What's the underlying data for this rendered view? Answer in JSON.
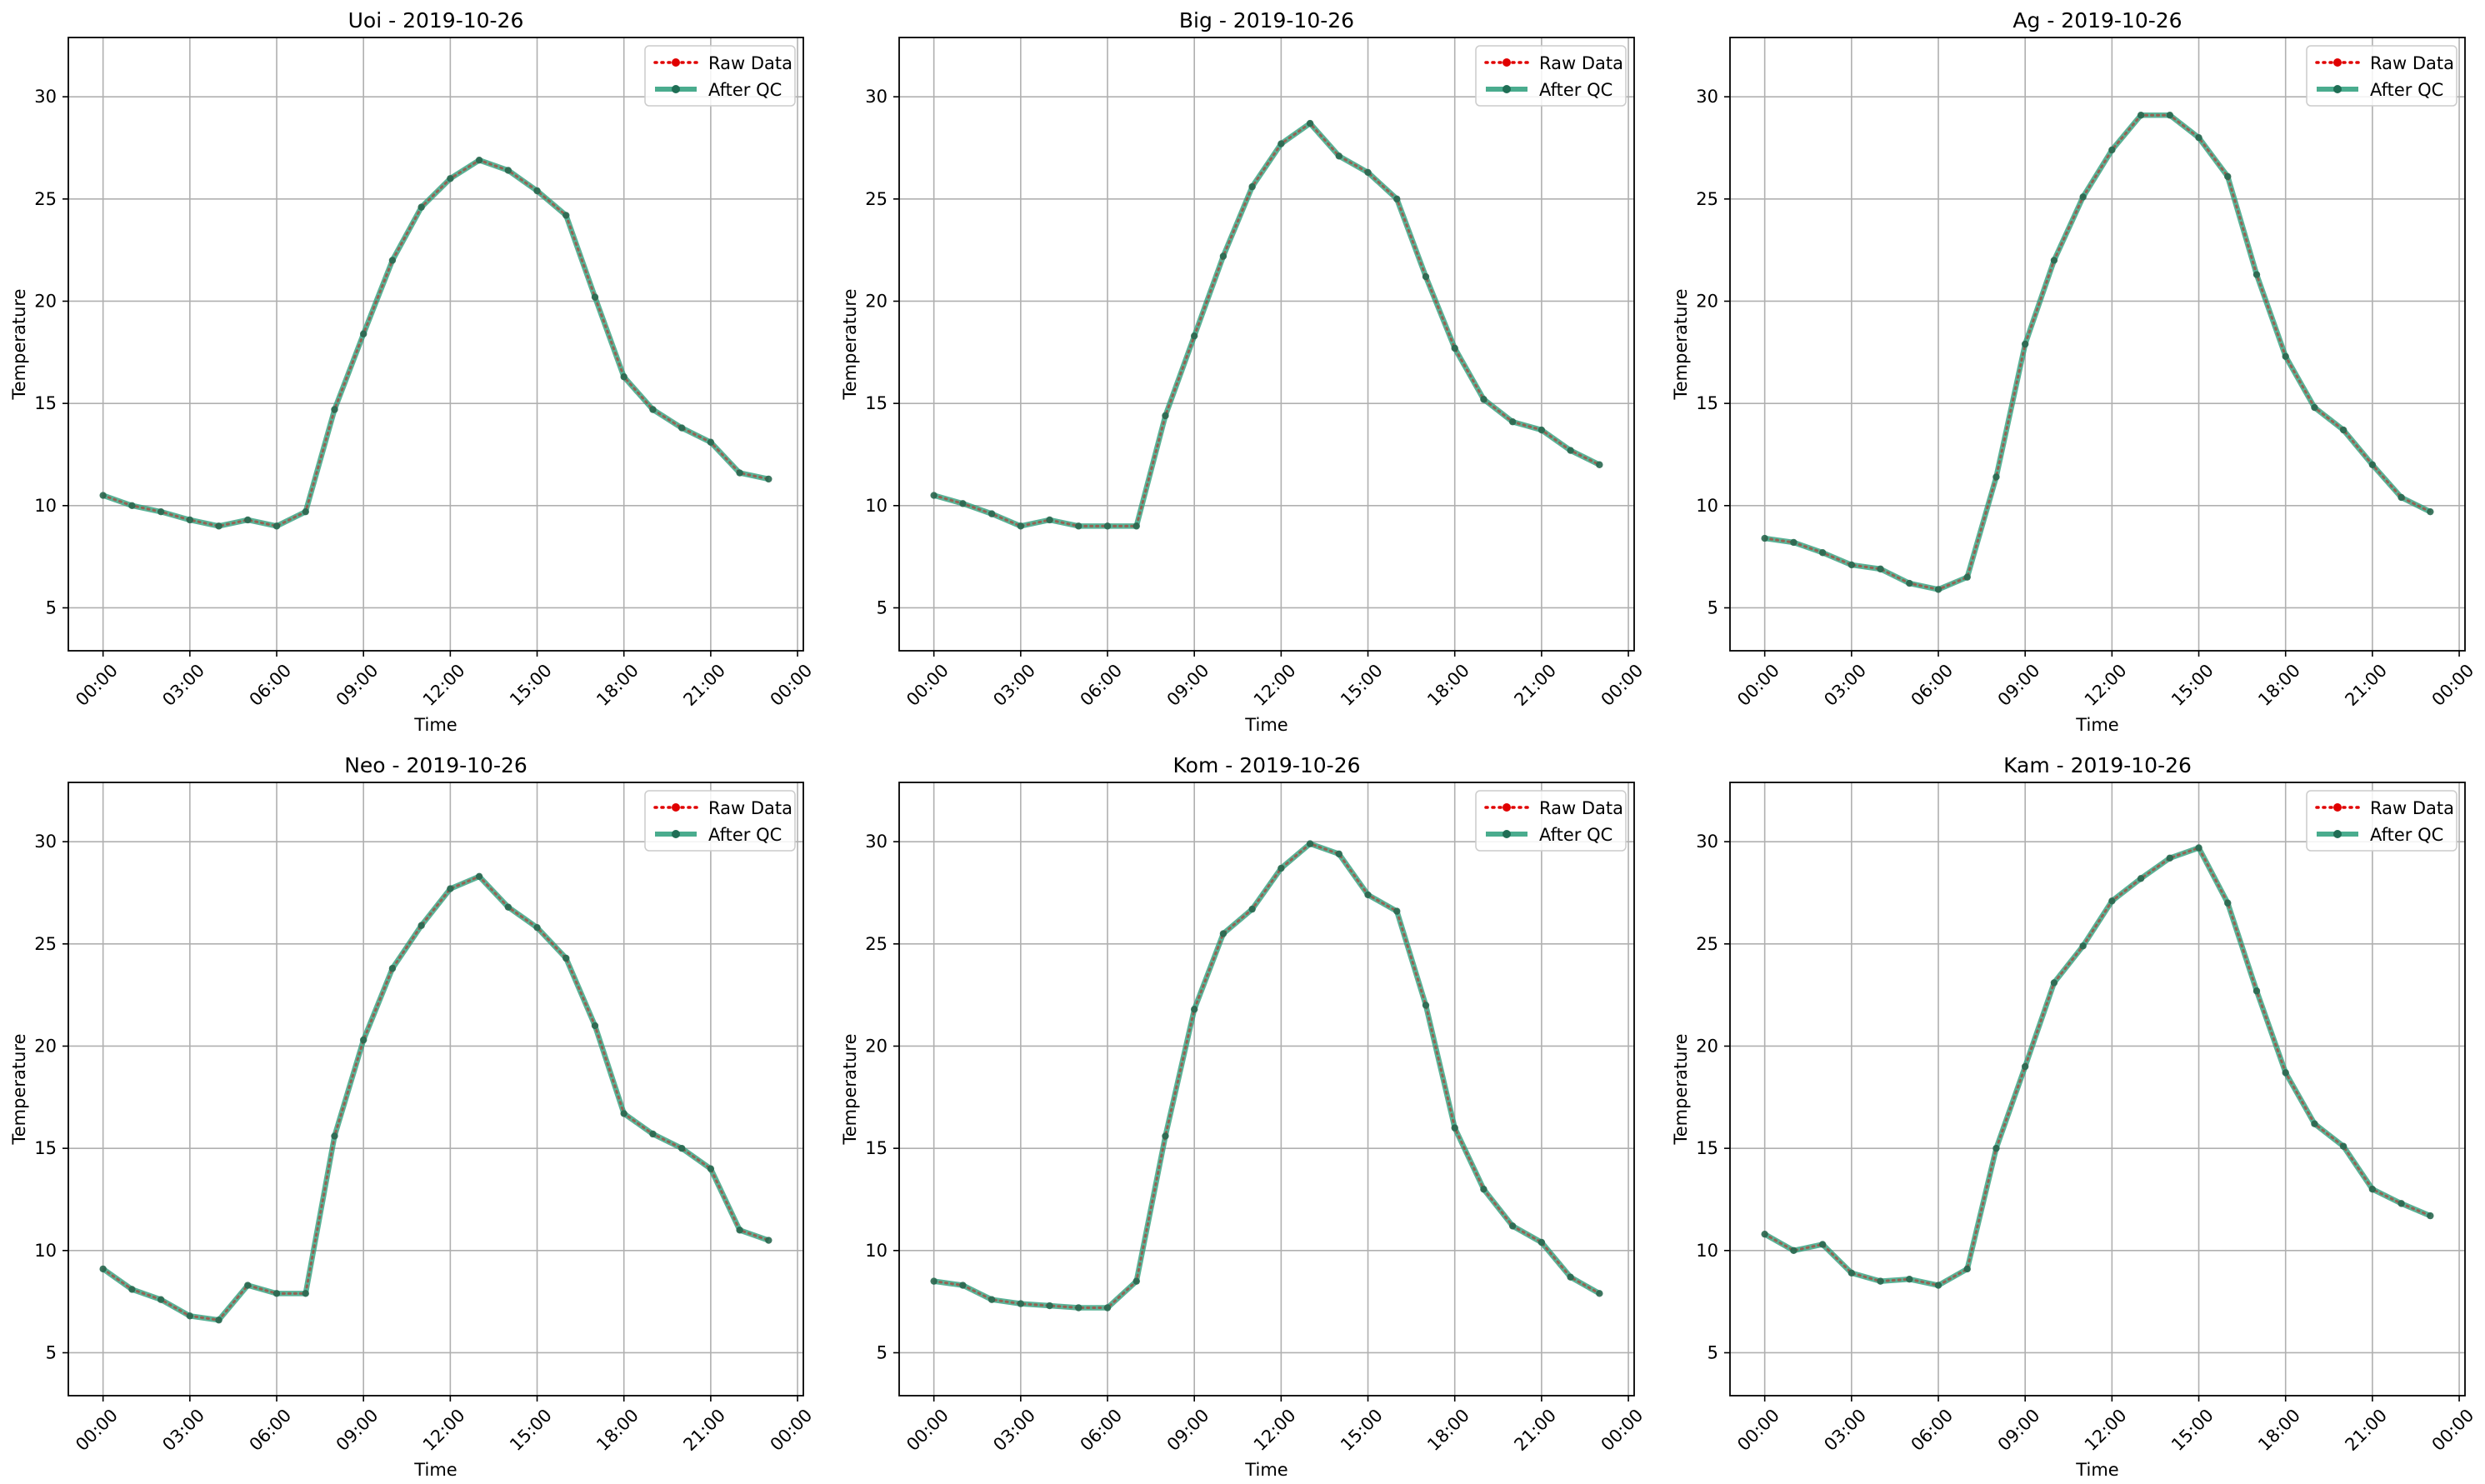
{
  "colors": {
    "raw": "#e00000",
    "qc": "#2a9d7a",
    "grid": "#b0b0b0",
    "axis": "#000000"
  },
  "x_ticks": [
    "00:00",
    "03:00",
    "06:00",
    "09:00",
    "12:00",
    "15:00",
    "18:00",
    "21:00",
    "00:00"
  ],
  "y_ticks": [
    "5",
    "10",
    "15",
    "20",
    "25",
    "30"
  ],
  "chart_data": [
    {
      "type": "line",
      "title": "Uoi - 2019-10-26",
      "xlabel": "Time",
      "ylabel": "Temperature",
      "xlim": [
        -1.2,
        24.2
      ],
      "ylim": [
        2.9,
        32.9
      ],
      "grid": true,
      "legend": "top-right",
      "x": [
        0,
        1,
        2,
        3,
        4,
        5,
        6,
        7,
        8,
        9,
        10,
        11,
        12,
        13,
        14,
        15,
        16,
        17,
        18,
        19,
        20,
        21,
        22,
        23
      ],
      "series": [
        {
          "name": "Raw Data",
          "style": "dotted",
          "values": [
            10.5,
            10.0,
            9.7,
            9.3,
            9.0,
            9.3,
            9.0,
            9.7,
            14.7,
            18.4,
            22.0,
            24.6,
            26.0,
            26.9,
            26.4,
            25.4,
            24.2,
            20.2,
            16.3,
            14.7,
            13.8,
            13.1,
            11.6,
            11.3
          ]
        },
        {
          "name": "After QC",
          "style": "solid",
          "values": [
            10.5,
            10.0,
            9.7,
            9.3,
            9.0,
            9.3,
            9.0,
            9.7,
            14.7,
            18.4,
            22.0,
            24.6,
            26.0,
            26.9,
            26.4,
            25.4,
            24.2,
            20.2,
            16.3,
            14.7,
            13.8,
            13.1,
            11.6,
            11.3
          ]
        }
      ]
    },
    {
      "type": "line",
      "title": "Big - 2019-10-26",
      "xlabel": "Time",
      "ylabel": "Temperature",
      "xlim": [
        -1.2,
        24.2
      ],
      "ylim": [
        2.9,
        32.9
      ],
      "grid": true,
      "legend": "top-right",
      "x": [
        0,
        1,
        2,
        3,
        4,
        5,
        6,
        7,
        8,
        9,
        10,
        11,
        12,
        13,
        14,
        15,
        16,
        17,
        18,
        19,
        20,
        21,
        22,
        23
      ],
      "series": [
        {
          "name": "Raw Data",
          "style": "dotted",
          "values": [
            10.5,
            10.1,
            9.6,
            9.0,
            9.3,
            9.0,
            9.0,
            9.0,
            14.4,
            18.3,
            22.2,
            25.6,
            27.7,
            28.7,
            27.1,
            26.3,
            25.0,
            21.2,
            17.7,
            15.2,
            14.1,
            13.7,
            12.7,
            12.0
          ]
        },
        {
          "name": "After QC",
          "style": "solid",
          "values": [
            10.5,
            10.1,
            9.6,
            9.0,
            9.3,
            9.0,
            9.0,
            9.0,
            14.4,
            18.3,
            22.2,
            25.6,
            27.7,
            28.7,
            27.1,
            26.3,
            25.0,
            21.2,
            17.7,
            15.2,
            14.1,
            13.7,
            12.7,
            12.0
          ]
        }
      ]
    },
    {
      "type": "line",
      "title": "Ag - 2019-10-26",
      "xlabel": "Time",
      "ylabel": "Temperature",
      "xlim": [
        -1.2,
        24.2
      ],
      "ylim": [
        2.9,
        32.9
      ],
      "grid": true,
      "legend": "top-right",
      "x": [
        0,
        1,
        2,
        3,
        4,
        5,
        6,
        7,
        8,
        9,
        10,
        11,
        12,
        13,
        14,
        15,
        16,
        17,
        18,
        19,
        20,
        21,
        22,
        23
      ],
      "series": [
        {
          "name": "Raw Data",
          "style": "dotted",
          "values": [
            8.4,
            8.2,
            7.7,
            7.1,
            6.9,
            6.2,
            5.9,
            6.5,
            11.4,
            17.9,
            22.0,
            25.1,
            27.4,
            29.1,
            29.1,
            28.0,
            26.1,
            21.3,
            17.3,
            14.8,
            13.7,
            12.0,
            10.4,
            9.7
          ]
        },
        {
          "name": "After QC",
          "style": "solid",
          "values": [
            8.4,
            8.2,
            7.7,
            7.1,
            6.9,
            6.2,
            5.9,
            6.5,
            11.4,
            17.9,
            22.0,
            25.1,
            27.4,
            29.1,
            29.1,
            28.0,
            26.1,
            21.3,
            17.3,
            14.8,
            13.7,
            12.0,
            10.4,
            9.7
          ]
        }
      ]
    },
    {
      "type": "line",
      "title": "Neo - 2019-10-26",
      "xlabel": "Time",
      "ylabel": "Temperature",
      "xlim": [
        -1.2,
        24.2
      ],
      "ylim": [
        2.9,
        32.9
      ],
      "grid": true,
      "legend": "top-right",
      "x": [
        0,
        1,
        2,
        3,
        4,
        5,
        6,
        7,
        8,
        9,
        10,
        11,
        12,
        13,
        14,
        15,
        16,
        17,
        18,
        19,
        20,
        21,
        22,
        23
      ],
      "series": [
        {
          "name": "Raw Data",
          "style": "dotted",
          "values": [
            9.1,
            8.1,
            7.6,
            6.8,
            6.6,
            8.3,
            7.9,
            7.9,
            15.6,
            20.3,
            23.8,
            25.9,
            27.7,
            28.3,
            26.8,
            25.8,
            24.3,
            21.0,
            16.7,
            15.7,
            15.0,
            14.0,
            11.0,
            10.5
          ]
        },
        {
          "name": "After QC",
          "style": "solid",
          "values": [
            9.1,
            8.1,
            7.6,
            6.8,
            6.6,
            8.3,
            7.9,
            7.9,
            15.6,
            20.3,
            23.8,
            25.9,
            27.7,
            28.3,
            26.8,
            25.8,
            24.3,
            21.0,
            16.7,
            15.7,
            15.0,
            14.0,
            11.0,
            10.5
          ]
        }
      ]
    },
    {
      "type": "line",
      "title": "Kom - 2019-10-26",
      "xlabel": "Time",
      "ylabel": "Temperature",
      "xlim": [
        -1.2,
        24.2
      ],
      "ylim": [
        2.9,
        32.9
      ],
      "grid": true,
      "legend": "top-right",
      "x": [
        0,
        1,
        2,
        3,
        4,
        5,
        6,
        7,
        8,
        9,
        10,
        11,
        12,
        13,
        14,
        15,
        16,
        17,
        18,
        19,
        20,
        21,
        22,
        23
      ],
      "series": [
        {
          "name": "Raw Data",
          "style": "dotted",
          "values": [
            8.5,
            8.3,
            7.6,
            7.4,
            7.3,
            7.2,
            7.2,
            8.5,
            15.6,
            21.8,
            25.5,
            26.7,
            28.7,
            29.9,
            29.4,
            27.4,
            26.6,
            22.0,
            16.0,
            13.0,
            11.2,
            10.4,
            8.7,
            7.9
          ]
        },
        {
          "name": "After QC",
          "style": "solid",
          "values": [
            8.5,
            8.3,
            7.6,
            7.4,
            7.3,
            7.2,
            7.2,
            8.5,
            15.6,
            21.8,
            25.5,
            26.7,
            28.7,
            29.9,
            29.4,
            27.4,
            26.6,
            22.0,
            16.0,
            13.0,
            11.2,
            10.4,
            8.7,
            7.9
          ]
        }
      ]
    },
    {
      "type": "line",
      "title": "Kam - 2019-10-26",
      "xlabel": "Time",
      "ylabel": "Temperature",
      "xlim": [
        -1.2,
        24.2
      ],
      "ylim": [
        2.9,
        32.9
      ],
      "grid": true,
      "legend": "top-right",
      "x": [
        0,
        1,
        2,
        3,
        4,
        5,
        6,
        7,
        8,
        9,
        10,
        11,
        12,
        13,
        14,
        15,
        16,
        17,
        18,
        19,
        20,
        21,
        22,
        23
      ],
      "series": [
        {
          "name": "Raw Data",
          "style": "dotted",
          "values": [
            10.8,
            10.0,
            10.3,
            8.9,
            8.5,
            8.6,
            8.3,
            9.1,
            15.0,
            19.0,
            23.1,
            24.9,
            27.1,
            28.2,
            29.2,
            29.7,
            27.0,
            22.7,
            18.7,
            16.2,
            15.1,
            13.0,
            12.3,
            11.7
          ]
        },
        {
          "name": "After QC",
          "style": "solid",
          "values": [
            10.8,
            10.0,
            10.3,
            8.9,
            8.5,
            8.6,
            8.3,
            9.1,
            15.0,
            19.0,
            23.1,
            24.9,
            27.1,
            28.2,
            29.2,
            29.7,
            27.0,
            22.7,
            18.7,
            16.2,
            15.1,
            13.0,
            12.3,
            11.7
          ]
        }
      ]
    }
  ]
}
